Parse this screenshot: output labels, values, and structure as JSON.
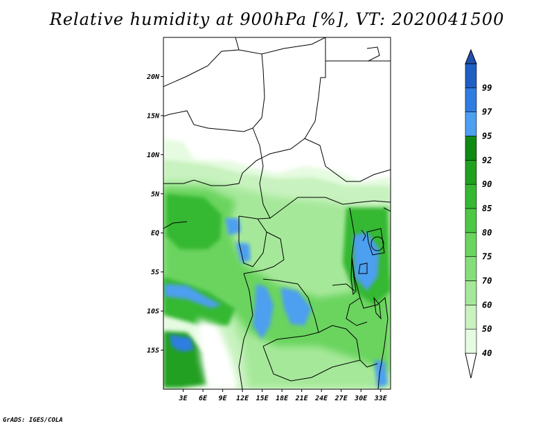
{
  "title": "Relative humidity at 900hPa [%], VT: 2020041500",
  "credit": "GrADS: IGES/COLA",
  "map": {
    "lon_range": [
      0,
      34.5
    ],
    "lat_range": [
      -20,
      25
    ],
    "lat_ticks": [
      {
        "value": 20,
        "label": "20N"
      },
      {
        "value": 15,
        "label": "15N"
      },
      {
        "value": 10,
        "label": "10N"
      },
      {
        "value": 5,
        "label": "5N"
      },
      {
        "value": 0,
        "label": "EQ"
      },
      {
        "value": -5,
        "label": "5S"
      },
      {
        "value": -10,
        "label": "10S"
      },
      {
        "value": -15,
        "label": "15S"
      }
    ],
    "lon_ticks": [
      {
        "value": 3,
        "label": "3E"
      },
      {
        "value": 6,
        "label": "6E"
      },
      {
        "value": 9,
        "label": "9E"
      },
      {
        "value": 12,
        "label": "12E"
      },
      {
        "value": 15,
        "label": "15E"
      },
      {
        "value": 18,
        "label": "18E"
      },
      {
        "value": 21,
        "label": "21E"
      },
      {
        "value": 24,
        "label": "24E"
      },
      {
        "value": 27,
        "label": "27E"
      },
      {
        "value": 30,
        "label": "30E"
      },
      {
        "value": 33,
        "label": "33E"
      }
    ]
  },
  "colorbar": {
    "levels": [
      {
        "label": "40",
        "color": "#e6fbe1"
      },
      {
        "label": "50",
        "color": "#c8f2bf"
      },
      {
        "label": "60",
        "color": "#a6e89a"
      },
      {
        "label": "70",
        "color": "#86de7a"
      },
      {
        "label": "75",
        "color": "#6ad45f"
      },
      {
        "label": "80",
        "color": "#4cc844"
      },
      {
        "label": "85",
        "color": "#36b832"
      },
      {
        "label": "90",
        "color": "#20a020"
      },
      {
        "label": "92",
        "color": "#0e8a12"
      },
      {
        "label": "95",
        "color": "#4d9ff0"
      },
      {
        "label": "97",
        "color": "#2f7de2"
      },
      {
        "label": "99",
        "color": "#1f5fc4"
      }
    ],
    "below_color": "#ffffff",
    "above_color": "#1f4fae"
  }
}
